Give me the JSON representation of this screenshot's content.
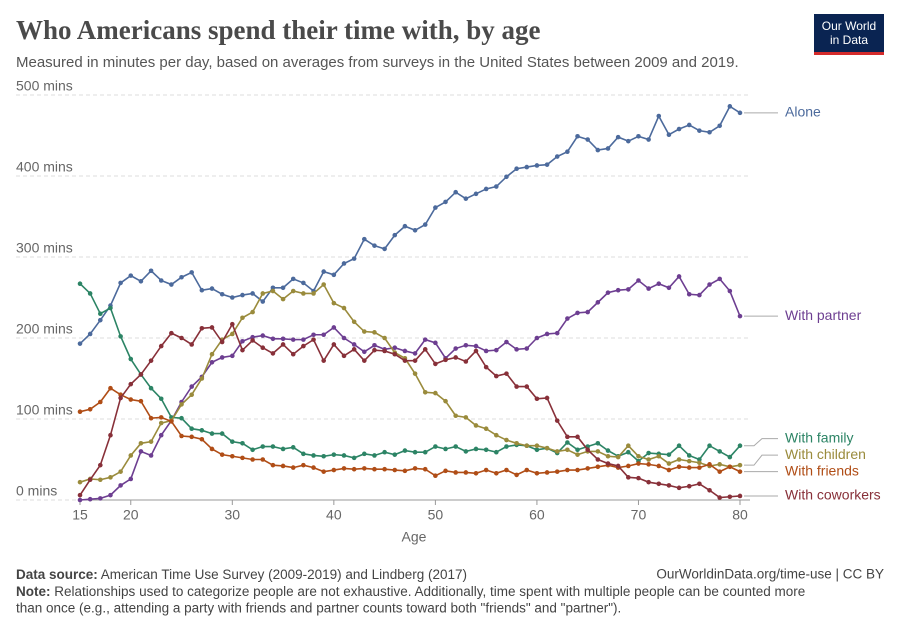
{
  "chart_data": {
    "type": "line",
    "title": "Who Americans spend their time with, by age",
    "subtitle": "Measured in minutes per day, based on averages from surveys in the United States between 2009 and 2019.",
    "logo": [
      "Our World",
      "in Data"
    ],
    "x_label": "Age",
    "x": [
      15,
      16,
      17,
      18,
      19,
      20,
      21,
      22,
      23,
      24,
      25,
      26,
      27,
      28,
      29,
      30,
      31,
      32,
      33,
      34,
      35,
      36,
      37,
      38,
      39,
      40,
      41,
      42,
      43,
      44,
      45,
      46,
      47,
      48,
      49,
      50,
      51,
      52,
      53,
      54,
      55,
      56,
      57,
      58,
      59,
      60,
      61,
      62,
      63,
      64,
      65,
      66,
      67,
      68,
      69,
      70,
      71,
      72,
      73,
      74,
      75,
      76,
      77,
      78,
      79,
      80
    ],
    "xlim": [
      15,
      80
    ],
    "xticks": [
      15,
      20,
      30,
      40,
      50,
      60,
      70,
      80
    ],
    "ylim": [
      0,
      500
    ],
    "yticks": [
      {
        "value": 0,
        "label": "0 mins"
      },
      {
        "value": 100,
        "label": "100 mins"
      },
      {
        "value": 200,
        "label": "200 mins"
      },
      {
        "value": 300,
        "label": "300 mins"
      },
      {
        "value": 400,
        "label": "400 mins"
      },
      {
        "value": 500,
        "label": "500 mins"
      }
    ],
    "grid": true,
    "series": [
      {
        "name": "Alone",
        "color": "#4c6a9c",
        "values": [
          193,
          205,
          222,
          240,
          268,
          277,
          270,
          283,
          271,
          266,
          275,
          281,
          259,
          261,
          254,
          250,
          253,
          255,
          245,
          262,
          262,
          273,
          268,
          258,
          282,
          278,
          292,
          298,
          322,
          314,
          310,
          327,
          338,
          333,
          340,
          361,
          368,
          380,
          372,
          378,
          384,
          387,
          399,
          409,
          411,
          413,
          414,
          424,
          430,
          449,
          445,
          432,
          434,
          448,
          443,
          449,
          445,
          474,
          451,
          458,
          463,
          456,
          454,
          462,
          486,
          478
        ]
      },
      {
        "name": "With partner",
        "color": "#6d3e91",
        "values": [
          0,
          1,
          2,
          6,
          18,
          26,
          60,
          55,
          80,
          98,
          121,
          140,
          152,
          170,
          176,
          178,
          196,
          201,
          203,
          199,
          199,
          198,
          198,
          204,
          204,
          213,
          200,
          192,
          183,
          191,
          186,
          188,
          184,
          181,
          198,
          194,
          175,
          187,
          191,
          190,
          184,
          185,
          195,
          186,
          187,
          200,
          205,
          206,
          224,
          231,
          232,
          244,
          256,
          259,
          260,
          271,
          261,
          267,
          262,
          276,
          254,
          253,
          266,
          273,
          258,
          227
        ]
      },
      {
        "name": "With family",
        "color": "#2c8465",
        "values": [
          267,
          255,
          230,
          237,
          202,
          174,
          155,
          138,
          125,
          102,
          101,
          88,
          86,
          82,
          82,
          72,
          70,
          62,
          66,
          66,
          63,
          65,
          57,
          55,
          54,
          56,
          55,
          52,
          57,
          55,
          59,
          56,
          61,
          59,
          59,
          66,
          63,
          66,
          60,
          63,
          62,
          59,
          66,
          68,
          67,
          62,
          64,
          58,
          71,
          62,
          66,
          70,
          61,
          54,
          59,
          48,
          58,
          57,
          56,
          67,
          55,
          50,
          67,
          60,
          53,
          67
        ]
      },
      {
        "name": "With children",
        "color": "#9a8b3c",
        "values": [
          22,
          26,
          25,
          28,
          35,
          55,
          70,
          72,
          95,
          98,
          118,
          130,
          150,
          180,
          198,
          205,
          225,
          232,
          255,
          258,
          248,
          258,
          255,
          255,
          266,
          243,
          237,
          220,
          208,
          207,
          200,
          182,
          175,
          156,
          133,
          132,
          122,
          104,
          102,
          92,
          88,
          80,
          74,
          70,
          67,
          67,
          64,
          60,
          62,
          56,
          60,
          60,
          54,
          53,
          67,
          54,
          50,
          54,
          45,
          50,
          48,
          46,
          42,
          44,
          41,
          43
        ]
      },
      {
        "name": "With friends",
        "color": "#b04d16",
        "values": [
          109,
          112,
          121,
          138,
          130,
          124,
          122,
          101,
          102,
          97,
          79,
          78,
          75,
          63,
          56,
          54,
          52,
          50,
          50,
          43,
          42,
          40,
          43,
          40,
          35,
          37,
          39,
          38,
          39,
          38,
          38,
          37,
          36,
          39,
          38,
          30,
          36,
          34,
          34,
          33,
          37,
          33,
          37,
          31,
          37,
          33,
          34,
          35,
          37,
          37,
          39,
          41,
          43,
          40,
          42,
          45,
          44,
          42,
          37,
          41,
          40,
          40,
          44,
          35,
          41,
          35
        ]
      },
      {
        "name": "With coworkers",
        "color": "#883039",
        "values": [
          6,
          25,
          43,
          80,
          126,
          143,
          155,
          172,
          190,
          206,
          200,
          192,
          212,
          213,
          195,
          217,
          185,
          197,
          188,
          181,
          192,
          180,
          190,
          198,
          172,
          192,
          178,
          186,
          172,
          185,
          184,
          180,
          172,
          172,
          186,
          168,
          173,
          176,
          171,
          184,
          164,
          153,
          156,
          140,
          140,
          125,
          126,
          98,
          78,
          78,
          62,
          50,
          45,
          42,
          28,
          27,
          22,
          20,
          18,
          15,
          17,
          20,
          12,
          3,
          4,
          5
        ]
      }
    ],
    "source_label": "Data source:",
    "source": "American Time Use Survey (2009-2019) and Lindberg (2017)",
    "url": "OurWorldinData.org/time-use | CC BY",
    "note_label": "Note:",
    "note": [
      "Relationships used to categorize people are not exhaustive. Additionally, time spent with multiple people can be counted more",
      "than once (e.g., attending a party with friends and partner counts toward both \"friends\" and \"partner\")."
    ]
  }
}
